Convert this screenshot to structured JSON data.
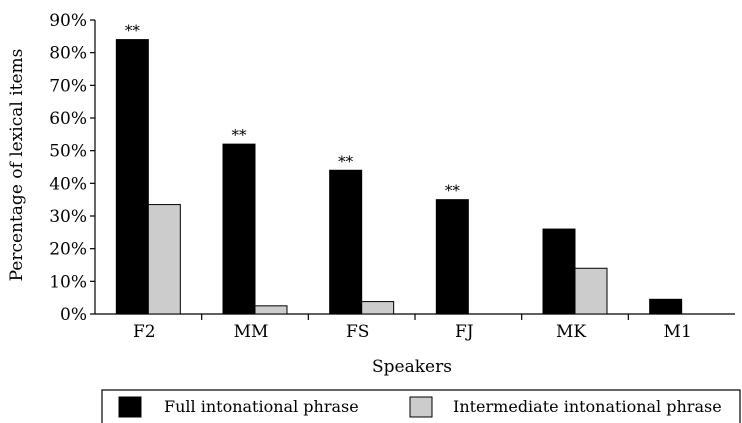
{
  "chart_data": {
    "type": "bar",
    "categories": [
      "F2",
      "MM",
      "FS",
      "FJ",
      "MK",
      "M1"
    ],
    "series": [
      {
        "name": "Full intonational phrase",
        "color": "#000000",
        "values": [
          84,
          52,
          44,
          35,
          26,
          4.5
        ]
      },
      {
        "name": "Intermediate intonational phrase",
        "color": "#cccccc",
        "values": [
          33.5,
          2.5,
          3.8,
          0,
          14,
          0
        ]
      }
    ],
    "annotations": [
      "**",
      "**",
      "**",
      "**",
      "",
      ""
    ],
    "xlabel": "Speakers",
    "ylabel": "Percentage of lexical items",
    "ylim": [
      0,
      90
    ],
    "yticks": [
      "0%",
      "10%",
      "20%",
      "30%",
      "40%",
      "50%",
      "60%",
      "70%",
      "80%",
      "90%"
    ],
    "grid": false,
    "legend_position": "bottom"
  }
}
